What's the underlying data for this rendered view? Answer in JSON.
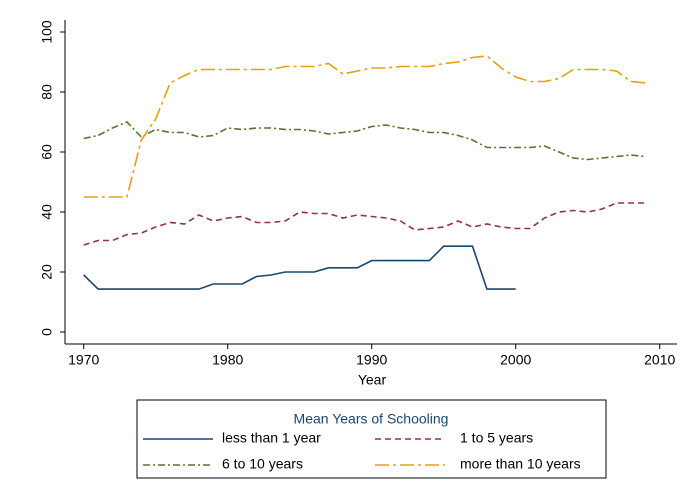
{
  "chart_data": {
    "type": "line",
    "x_label": "Year",
    "x": [
      1970,
      1971,
      1972,
      1973,
      1974,
      1975,
      1976,
      1977,
      1978,
      1979,
      1980,
      1981,
      1982,
      1983,
      1984,
      1985,
      1986,
      1987,
      1988,
      1989,
      1990,
      1991,
      1992,
      1993,
      1994,
      1995,
      1996,
      1997,
      1998,
      1999,
      2000,
      2001,
      2002,
      2003,
      2004,
      2005,
      2006,
      2007,
      2008,
      2009
    ],
    "xlim": [
      1968.7,
      2011.2
    ],
    "xticks": [
      1970,
      1980,
      1990,
      2000,
      2010
    ],
    "ylim": [
      -4,
      104
    ],
    "yticks": [
      0,
      20,
      40,
      60,
      80,
      100
    ],
    "grid": false,
    "legend": {
      "title": "Mean Years of Schooling",
      "position": "bottom",
      "columns": 2
    },
    "series": [
      {
        "name": "less than 1 year",
        "color": "#1a476f",
        "dash": "none",
        "values": [
          19,
          14.3,
          14.3,
          14.3,
          14.3,
          14.3,
          14.3,
          14.3,
          14.3,
          16,
          16,
          16,
          18.5,
          19,
          20,
          20,
          20,
          21.4,
          21.4,
          21.4,
          23.8,
          23.8,
          23.8,
          23.8,
          23.8,
          28.6,
          28.6,
          28.6,
          14.3,
          14.3,
          14.3,
          null,
          null,
          null,
          null,
          null,
          null,
          null,
          null,
          null
        ]
      },
      {
        "name": "1 to 5 years",
        "color": "#90353b",
        "dash": "6 4",
        "values": [
          29,
          30.5,
          30.5,
          32.5,
          33,
          35,
          36.5,
          36,
          39,
          37,
          38,
          38.5,
          36.5,
          36.5,
          37,
          40,
          39.5,
          39.5,
          38,
          39,
          38.5,
          38,
          37,
          34,
          34.5,
          35,
          37,
          35,
          36,
          35,
          34.5,
          34.5,
          38,
          40,
          40.5,
          40,
          41,
          43,
          43,
          43
        ]
      },
      {
        "name": "6 to 10 years",
        "color": "#55752f",
        "dash": "7 3 2 3",
        "values": [
          64.5,
          65.5,
          68,
          70,
          65,
          67.5,
          66.5,
          66.5,
          65,
          65.5,
          68,
          67.5,
          68,
          68,
          67.5,
          67.5,
          67,
          66,
          66.5,
          67,
          68.5,
          69,
          68,
          67.5,
          66.5,
          66.5,
          65.5,
          64,
          61.5,
          61.5,
          61.5,
          61.5,
          62,
          60,
          58,
          57.5,
          58,
          58.5,
          59,
          58.5
        ]
      },
      {
        "name": "more than 10 years",
        "color": "#e5a00d",
        "dash": "14 4 3 4",
        "values": [
          45,
          45,
          45,
          45,
          64,
          71,
          83,
          85.5,
          87.5,
          87.5,
          87.5,
          87.5,
          87.5,
          87.5,
          88.5,
          88.5,
          88.5,
          89.5,
          86,
          87,
          88,
          88,
          88.5,
          88.5,
          88.5,
          89.5,
          90,
          91.5,
          92,
          88,
          85,
          83.5,
          83.5,
          84.5,
          87.5,
          87.5,
          87.5,
          87,
          83.5,
          83
        ]
      }
    ]
  }
}
